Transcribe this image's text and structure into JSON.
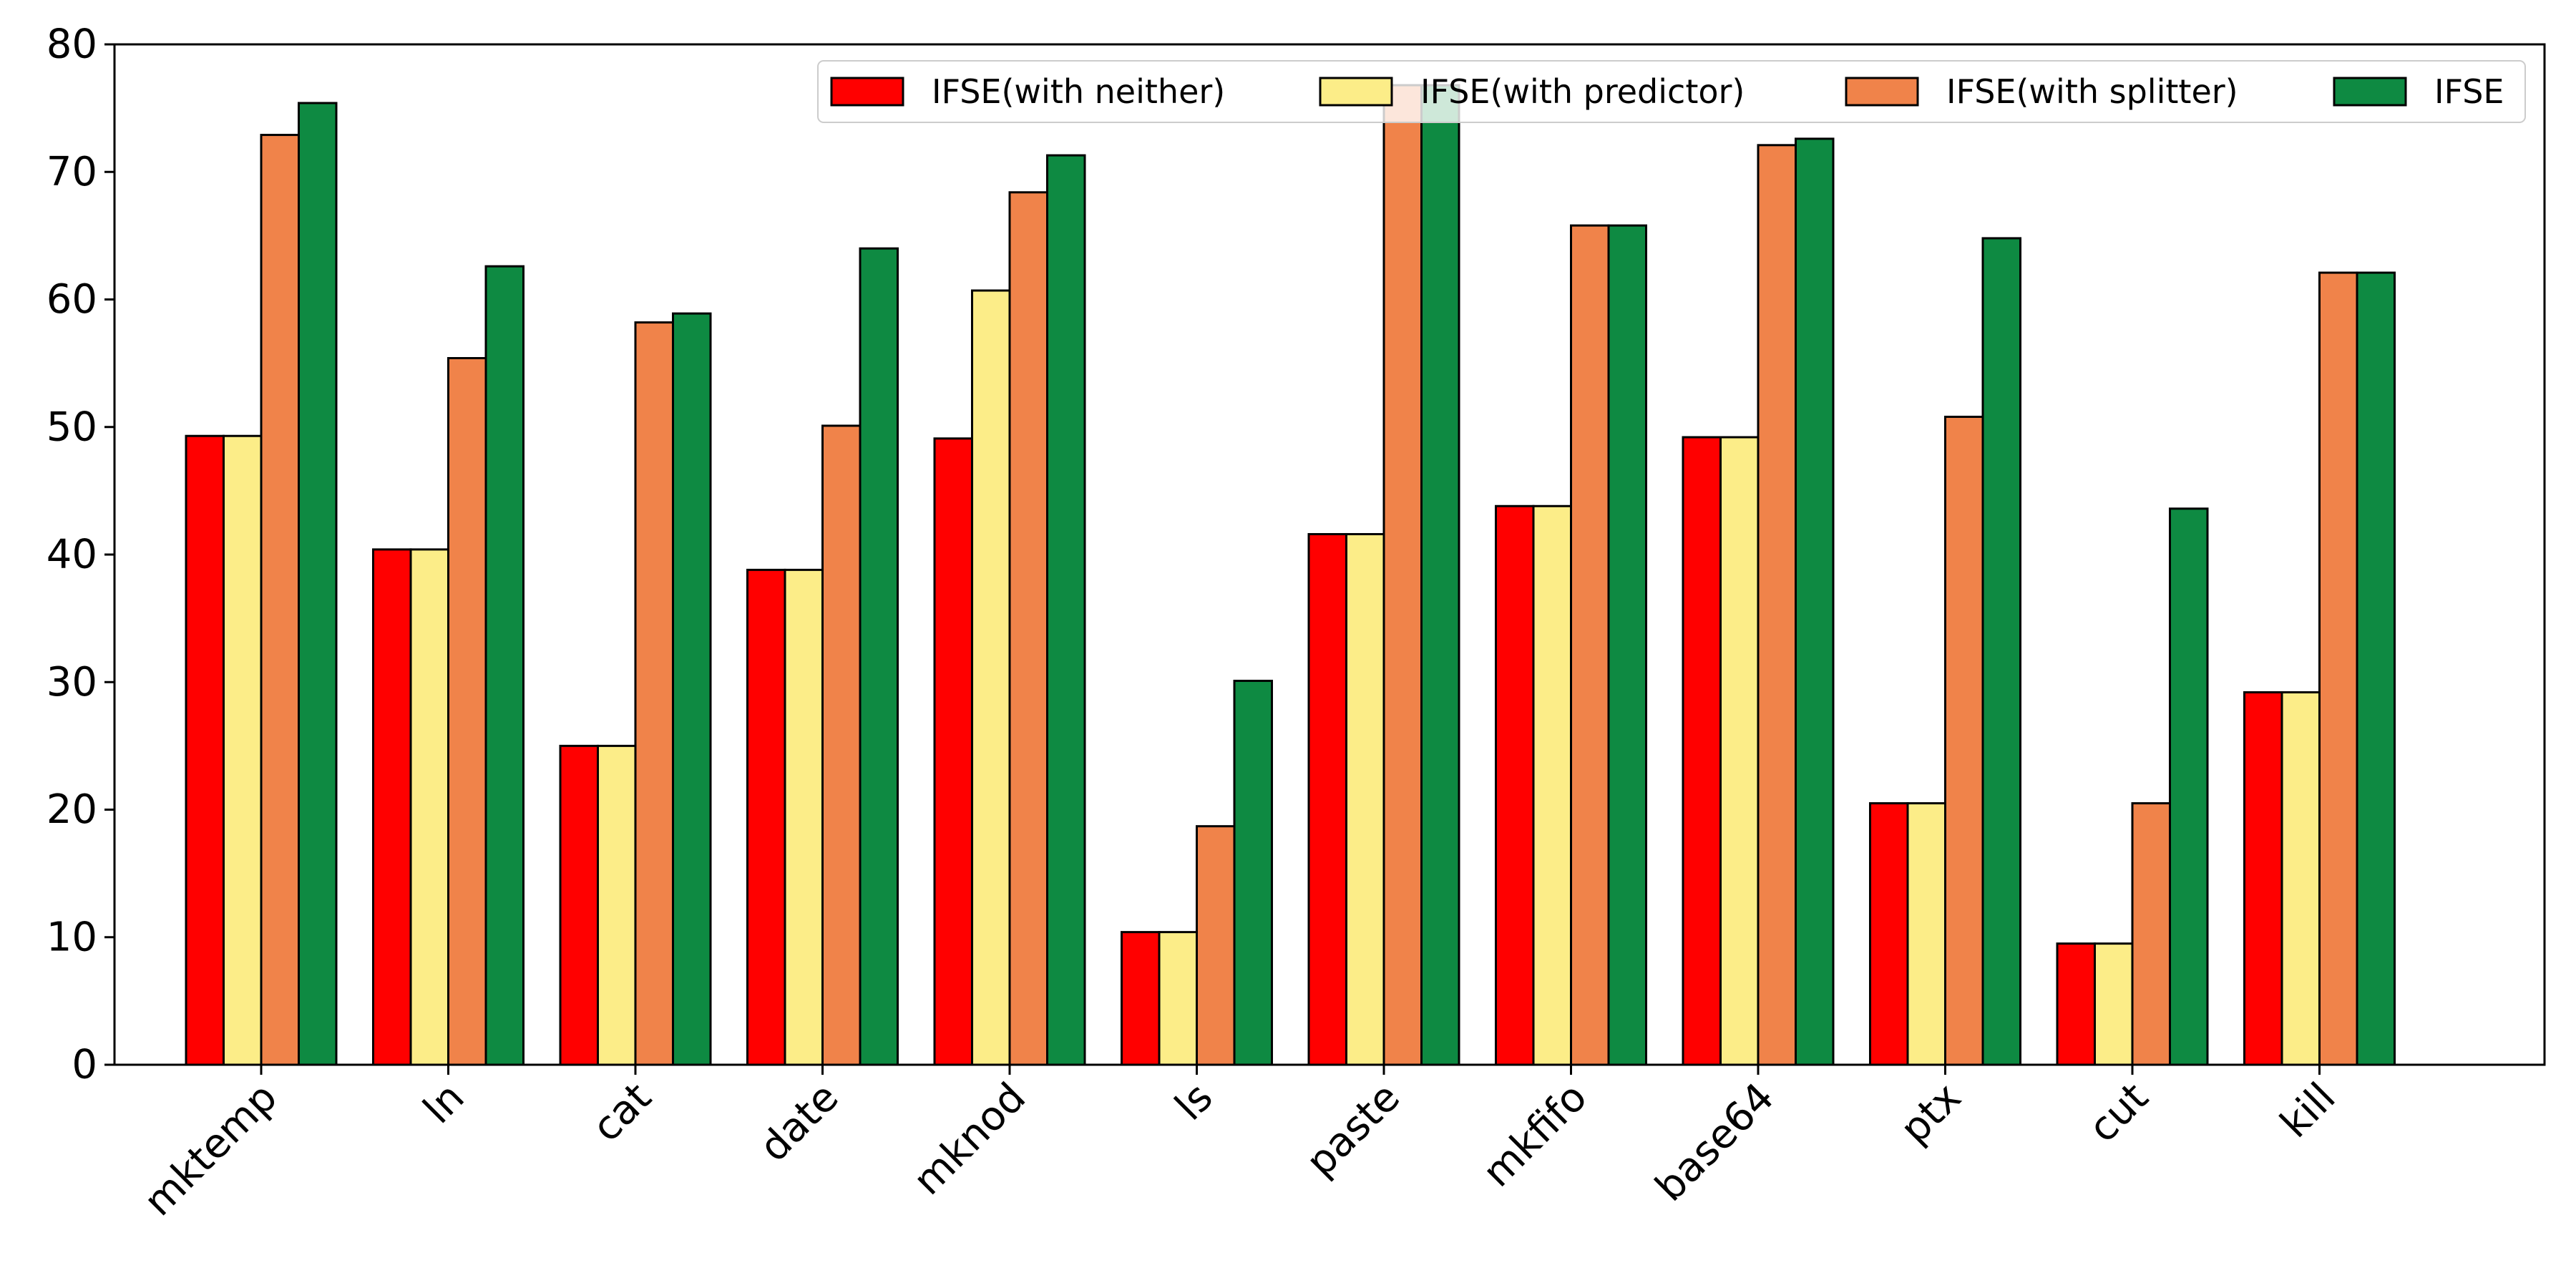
{
  "chart_data": {
    "type": "bar",
    "categories": [
      "mktemp",
      "ln",
      "cat",
      "date",
      "mknod",
      "ls",
      "paste",
      "mkfifo",
      "base64",
      "ptx",
      "cut",
      "kill"
    ],
    "series": [
      {
        "name": "IFSE(with neither)",
        "color": "#ff0000",
        "values": [
          49.3,
          40.4,
          25.0,
          38.8,
          49.1,
          10.4,
          41.6,
          43.8,
          49.2,
          20.5,
          9.5,
          29.2
        ]
      },
      {
        "name": "IFSE(with predictor)",
        "color": "#fced88",
        "values": [
          49.3,
          40.4,
          25.0,
          38.8,
          60.7,
          10.4,
          41.6,
          43.8,
          49.2,
          20.5,
          9.5,
          29.2
        ]
      },
      {
        "name": "IFSE(with splitter)",
        "color": "#f0834a",
        "values": [
          72.9,
          55.4,
          58.2,
          50.1,
          68.4,
          18.7,
          76.8,
          65.8,
          72.1,
          50.8,
          20.5,
          62.1
        ]
      },
      {
        "name": "IFSE",
        "color": "#0e8a42",
        "values": [
          75.4,
          62.6,
          58.9,
          64.0,
          71.3,
          30.1,
          76.8,
          65.8,
          72.6,
          64.8,
          43.6,
          62.1
        ]
      }
    ],
    "title": "",
    "xlabel": "",
    "ylabel": "",
    "ylim": [
      0,
      80
    ],
    "yticks": [
      0,
      10,
      20,
      30,
      40,
      50,
      60,
      70,
      80
    ],
    "grid": false,
    "legend_position": "top-right"
  }
}
